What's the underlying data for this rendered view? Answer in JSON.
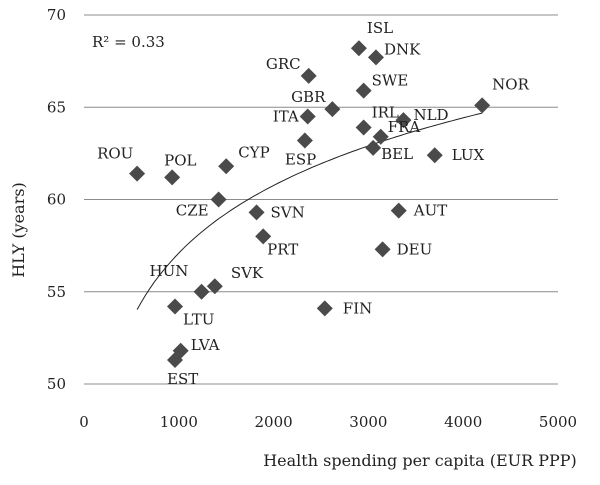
{
  "chart_data": {
    "type": "scatter",
    "title": "",
    "xlabel": "Health spending per capita (EUR PPP)",
    "ylabel": "HLY (years)",
    "xlim": [
      0,
      5000
    ],
    "ylim": [
      50,
      70
    ],
    "xticks": [
      0,
      1000,
      2000,
      3000,
      4000,
      5000
    ],
    "yticks": [
      50,
      55,
      60,
      65,
      70
    ],
    "grid": "horizontal",
    "legend": "none",
    "annotation": "R² = 0.33",
    "marker_color": "#4a4a4a",
    "points": [
      {
        "label": "ISL",
        "x": 2900,
        "y": 68.2
      },
      {
        "label": "DNK",
        "x": 3080,
        "y": 67.7
      },
      {
        "label": "GRC",
        "x": 2370,
        "y": 66.7
      },
      {
        "label": "SWE",
        "x": 2950,
        "y": 65.9
      },
      {
        "label": "NOR",
        "x": 4200,
        "y": 65.1
      },
      {
        "label": "GBR",
        "x": 2620,
        "y": 64.9
      },
      {
        "label": "ITA",
        "x": 2360,
        "y": 64.5
      },
      {
        "label": "NLD",
        "x": 3370,
        "y": 64.3
      },
      {
        "label": "IRL",
        "x": 2950,
        "y": 63.9
      },
      {
        "label": "FRA",
        "x": 3130,
        "y": 63.4
      },
      {
        "label": "ESP",
        "x": 2330,
        "y": 63.2
      },
      {
        "label": "BEL",
        "x": 3050,
        "y": 62.8
      },
      {
        "label": "LUX",
        "x": 3700,
        "y": 62.4
      },
      {
        "label": "CYP",
        "x": 1500,
        "y": 61.8
      },
      {
        "label": "ROU",
        "x": 560,
        "y": 61.4
      },
      {
        "label": "POL",
        "x": 930,
        "y": 61.2
      },
      {
        "label": "CZE",
        "x": 1420,
        "y": 60.0
      },
      {
        "label": "SVN",
        "x": 1820,
        "y": 59.3
      },
      {
        "label": "AUT",
        "x": 3320,
        "y": 59.4
      },
      {
        "label": "PRT",
        "x": 1890,
        "y": 58.0
      },
      {
        "label": "DEU",
        "x": 3150,
        "y": 57.3
      },
      {
        "label": "SVK",
        "x": 1380,
        "y": 55.3
      },
      {
        "label": "HUN",
        "x": 1240,
        "y": 55.0
      },
      {
        "label": "LTU",
        "x": 960,
        "y": 54.2
      },
      {
        "label": "FIN",
        "x": 2540,
        "y": 54.1
      },
      {
        "label": "LVA",
        "x": 1020,
        "y": 51.8
      },
      {
        "label": "EST",
        "x": 960,
        "y": 51.3
      }
    ]
  }
}
